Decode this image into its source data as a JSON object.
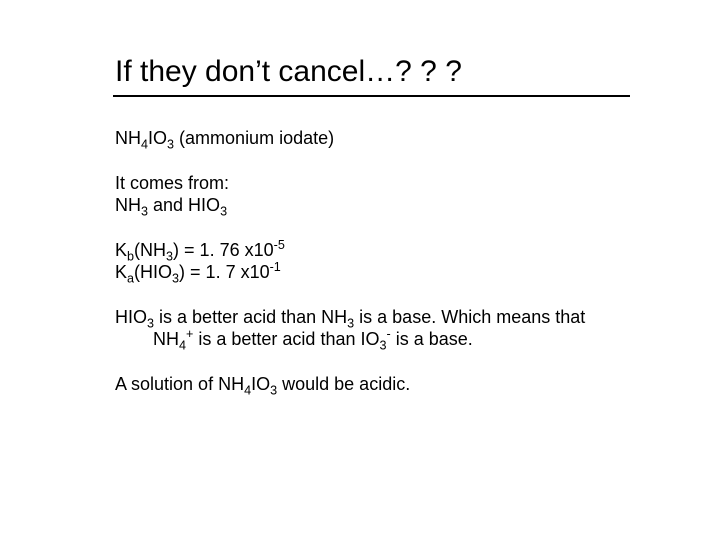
{
  "slide": {
    "title": "If they don’t cancel…? ? ?",
    "line1_pre": "NH",
    "line1_s1": "4",
    "line1_mid": "IO",
    "line1_s2": "3",
    "line1_post": " (ammonium iodate)",
    "line2a": "It comes from:",
    "line2b_pre": "NH",
    "line2b_s1": "3",
    "line2b_mid": " and HIO",
    "line2b_s2": "3",
    "line3a_pre": "K",
    "line3a_s1": "b",
    "line3a_mid": "(NH",
    "line3a_s2": "3",
    "line3a_post": ") = 1. 76 x10",
    "line3a_sup": "-5",
    "line3b_pre": "K",
    "line3b_s1": "a",
    "line3b_mid": "(HIO",
    "line3b_s2": "3",
    "line3b_post": ") = 1. 7 x10",
    "line3b_sup": "-1",
    "line4_t1": "HIO",
    "line4_s1": "3",
    "line4_t2": " is a better acid than NH",
    "line4_s2": "3",
    "line4_t3": " is a base.  Which means that NH",
    "line4_s3": "4",
    "line4_sup1": "+",
    "line4_t4": " is a better acid than IO",
    "line4_s4": "3",
    "line4_sup2": "-",
    "line4_t5": " is a base.",
    "line5_t1": "A solution of NH",
    "line5_s1": "4",
    "line5_t2": "IO",
    "line5_s2": "3",
    "line5_t3": " would be acidic."
  }
}
